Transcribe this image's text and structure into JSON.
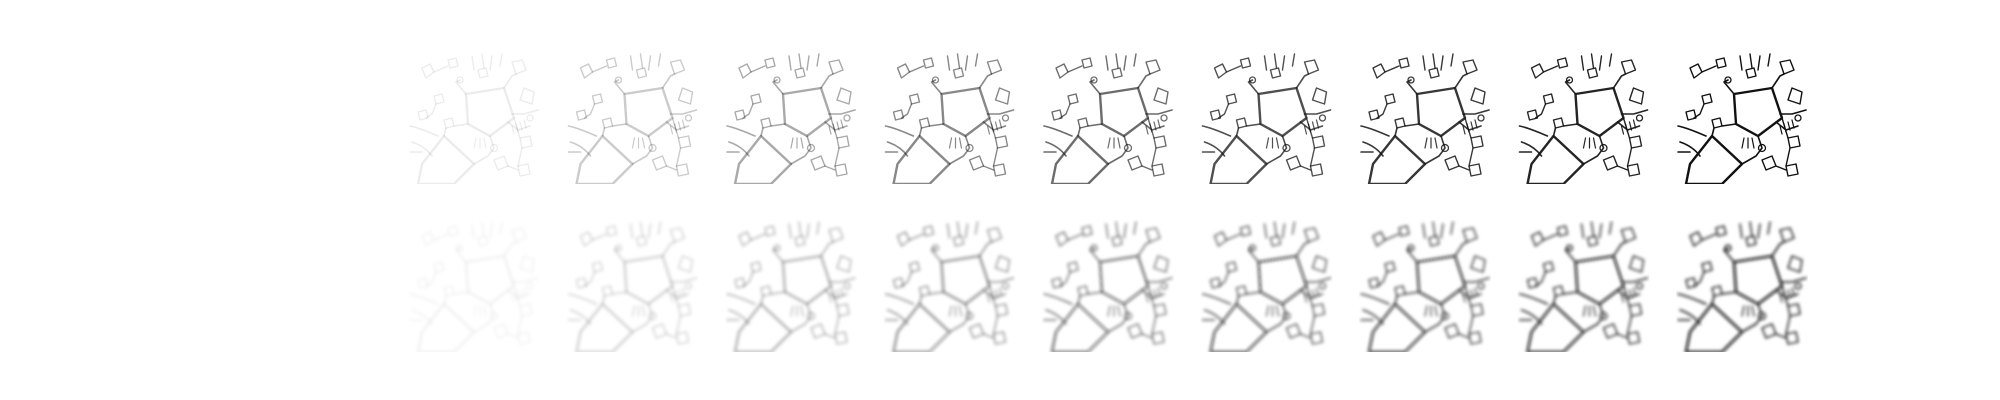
{
  "figure": {
    "rows": [
      {
        "render_style": "sharp",
        "tiles": [
          {
            "ink_level": 0.08
          },
          {
            "ink_level": 0.22
          },
          {
            "ink_level": 0.36
          },
          {
            "ink_level": 0.5
          },
          {
            "ink_level": 0.62
          },
          {
            "ink_level": 0.74
          },
          {
            "ink_level": 0.84
          },
          {
            "ink_level": 0.92
          },
          {
            "ink_level": 1.0
          }
        ]
      },
      {
        "render_style": "blurred",
        "tiles": [
          {
            "ink_level": 0.06
          },
          {
            "ink_level": 0.18
          },
          {
            "ink_level": 0.3
          },
          {
            "ink_level": 0.42
          },
          {
            "ink_level": 0.54
          },
          {
            "ink_level": 0.66
          },
          {
            "ink_level": 0.76
          },
          {
            "ink_level": 0.86
          },
          {
            "ink_level": 0.95
          }
        ]
      }
    ],
    "ink_color": "#111111",
    "background_color": "#ffffff"
  }
}
